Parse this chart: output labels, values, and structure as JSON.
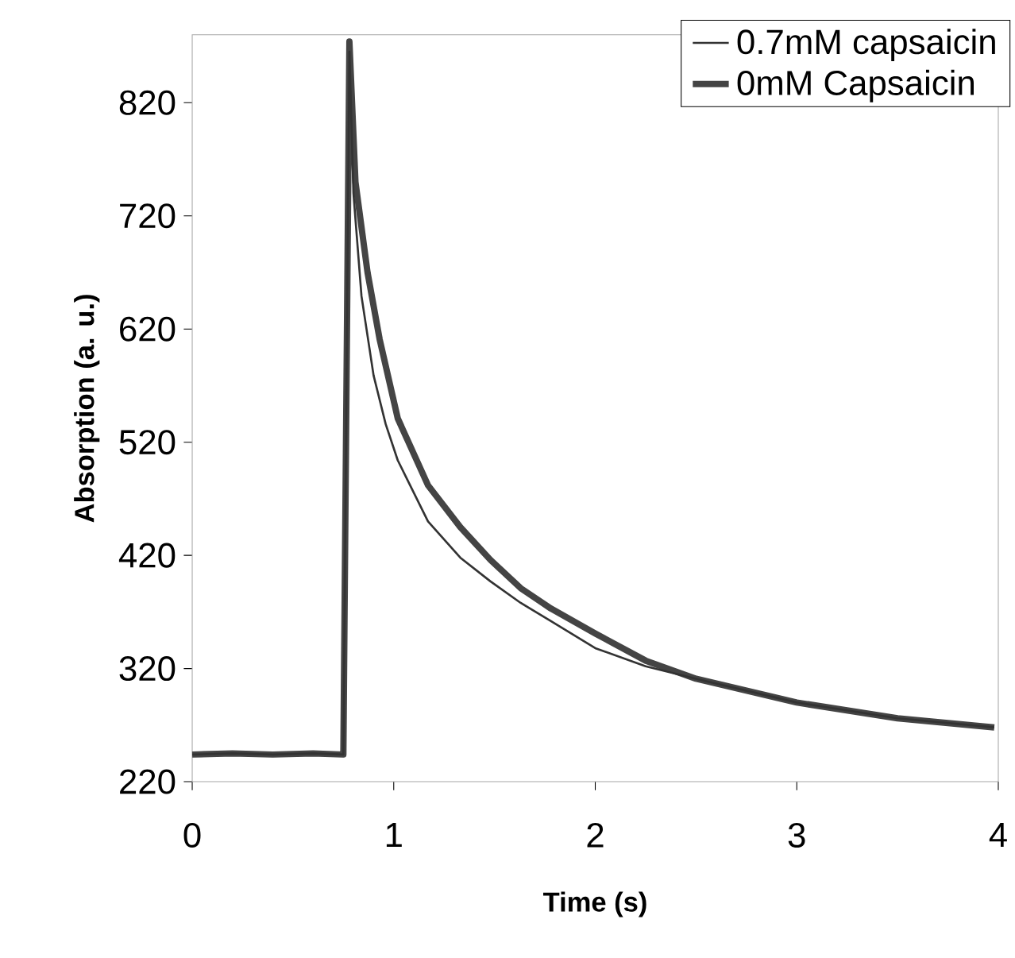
{
  "chart_data": {
    "type": "line",
    "xlabel": "Time (s)",
    "ylabel": "Absorption (a. u.)",
    "xlim": [
      0,
      4
    ],
    "ylim": [
      220,
      880
    ],
    "xticks": [
      0,
      1,
      2,
      3,
      4
    ],
    "yticks": [
      220,
      320,
      420,
      520,
      620,
      720,
      820
    ],
    "legend": "top right",
    "marker": "none",
    "line_style": "solid",
    "series": [
      {
        "name": "0.7mM capsaicin",
        "color": "#333333",
        "x": [
          0,
          0.2,
          0.4,
          0.6,
          0.75,
          0.78,
          0.8,
          0.84,
          0.9,
          0.96,
          1.02,
          1.17,
          1.33,
          1.48,
          1.63,
          1.78,
          2.0,
          2.25,
          2.5,
          3.0,
          3.5,
          3.98
        ],
        "values": [
          244,
          245,
          244,
          245,
          244,
          865,
          740,
          649,
          579,
          536,
          504,
          450,
          418,
          397,
          378,
          362,
          338,
          322,
          311,
          290,
          276,
          268
        ]
      },
      {
        "name": "0mM Capsaicin",
        "color": "#444444",
        "x": [
          0,
          0.2,
          0.4,
          0.6,
          0.75,
          0.78,
          0.81,
          0.87,
          0.93,
          1.02,
          1.17,
          1.33,
          1.48,
          1.63,
          1.78,
          2.0,
          2.25,
          2.5,
          3.0,
          3.5,
          3.98
        ],
        "values": [
          244,
          245,
          244,
          245,
          244,
          874,
          750,
          670,
          611,
          541,
          482,
          445,
          416,
          391,
          373,
          351,
          327,
          311,
          290,
          276,
          268
        ]
      }
    ]
  }
}
